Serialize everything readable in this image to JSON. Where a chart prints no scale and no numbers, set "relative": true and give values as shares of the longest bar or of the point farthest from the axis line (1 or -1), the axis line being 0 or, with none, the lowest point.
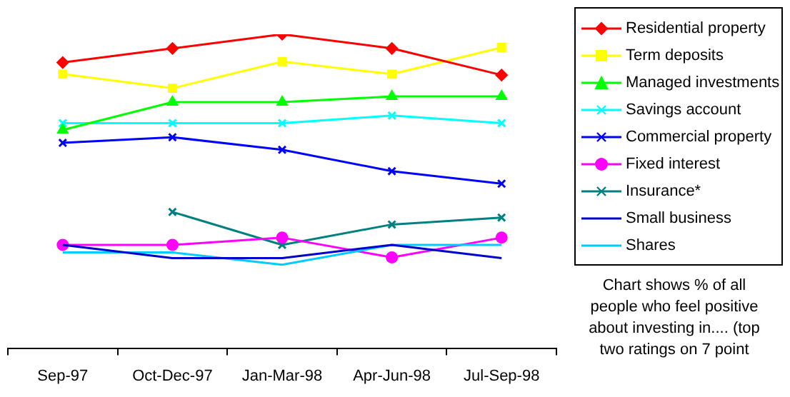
{
  "chart_data": {
    "type": "line",
    "relative": true,
    "categories": [
      "Sep-97",
      "Oct-Dec-97",
      "Jan-Mar-98",
      "Apr-Jun-98",
      "Jul-Sep-98"
    ],
    "legend": "right",
    "grid": false,
    "series": [
      {
        "name": "Residential property",
        "color": "#ff0000",
        "marker": "diamond",
        "values": [
          0.91,
          0.955,
          1,
          0.955,
          0.87
        ]
      },
      {
        "name": "Term deposits",
        "color": "#ffff00",
        "marker": "square",
        "values": [
          0.873,
          0.828,
          0.913,
          0.873,
          0.958
        ]
      },
      {
        "name": "Managed investments",
        "color": "#00ff00",
        "marker": "triangle",
        "values": [
          0.695,
          0.784,
          0.784,
          0.802,
          0.802
        ]
      },
      {
        "name": "Savings account",
        "color": "#00ffff",
        "marker": "cross",
        "values": [
          0.717,
          0.717,
          0.717,
          0.741,
          0.717
        ]
      },
      {
        "name": "Commercial property",
        "color": "#0000ff",
        "marker": "cross",
        "values": [
          0.654,
          0.672,
          0.632,
          0.564,
          0.524
        ]
      },
      {
        "name": "Fixed interest",
        "color": "#ff00ff",
        "marker": "circle",
        "values": [
          0.329,
          0.329,
          0.352,
          0.289,
          0.352
        ]
      },
      {
        "name": "Insurance*",
        "color": "#008080",
        "marker": "cross",
        "values": [
          null,
          0.434,
          0.329,
          0.394,
          0.416
        ]
      },
      {
        "name": "Small business",
        "color": "#0000cc",
        "marker": "none",
        "values": [
          0.329,
          0.287,
          0.287,
          0.329,
          0.287
        ]
      },
      {
        "name": "Shares",
        "color": "#00ccff",
        "marker": "none",
        "values": [
          0.305,
          0.305,
          0.266,
          0.329,
          0.329
        ]
      }
    ],
    "annotations": [
      "Chart shows % of all people who feel positive about investing in.... (top two ratings on 7 point"
    ]
  }
}
